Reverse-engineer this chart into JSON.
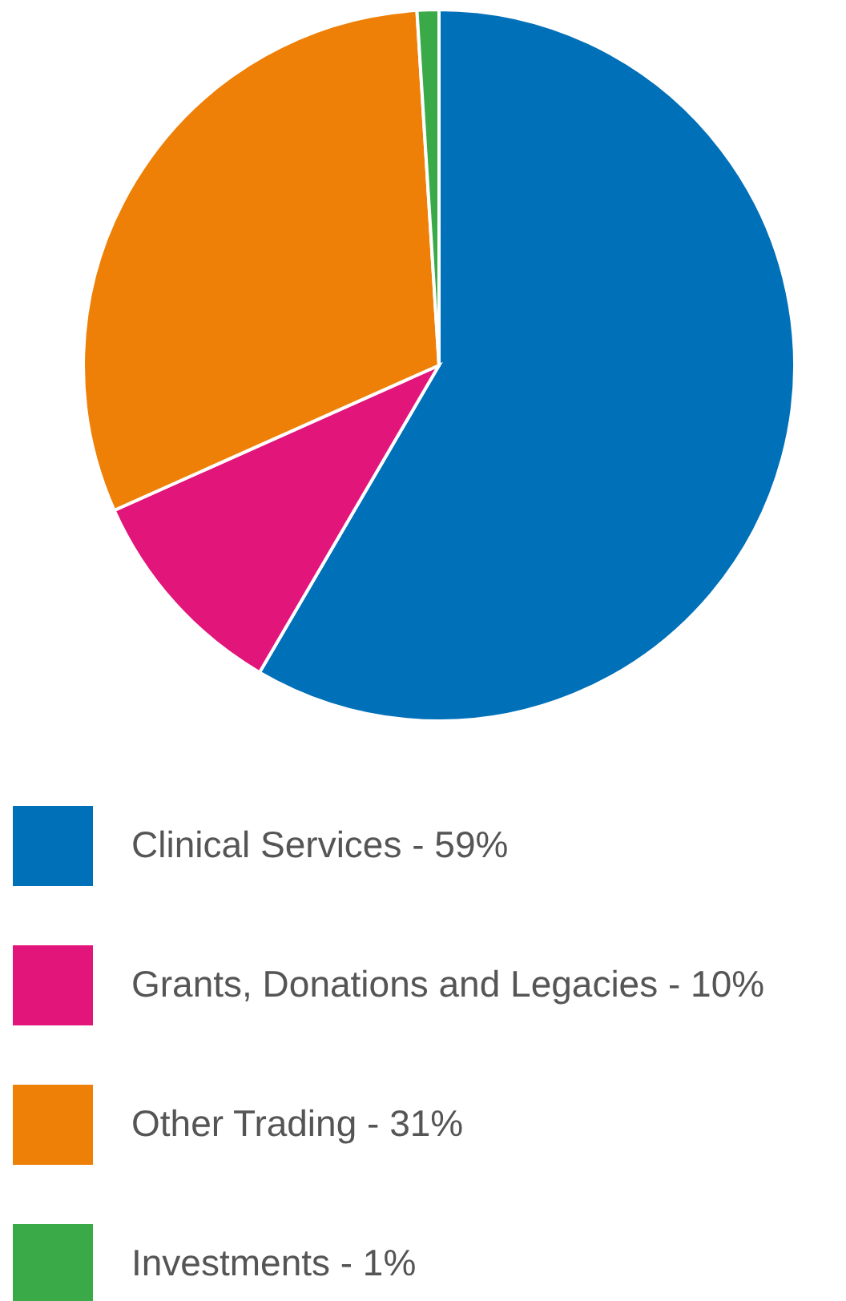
{
  "chart_data": {
    "type": "pie",
    "categories": [
      "Clinical Services - 59%",
      "Grants, Donations and Legacies - 10%",
      "Other Trading - 31%",
      "Investments - 1%"
    ],
    "values": [
      59,
      10,
      31,
      1
    ],
    "colors": [
      "#0070b8",
      "#e2157a",
      "#ee8008",
      "#3aaa49"
    ],
    "legend": "bottom"
  }
}
